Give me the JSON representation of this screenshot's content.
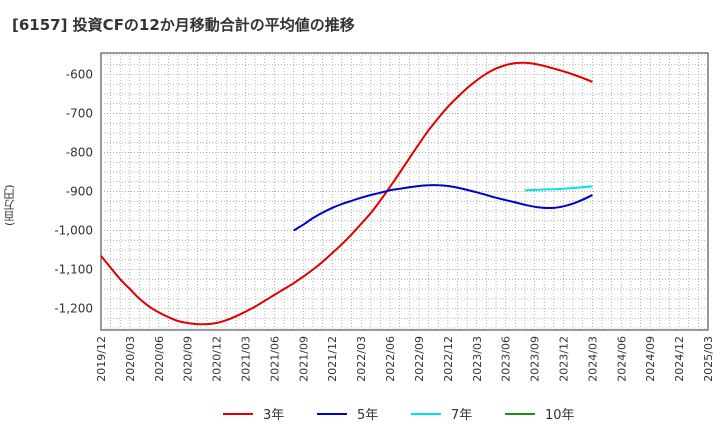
{
  "title": "[6157]  投資CFの12か月移動合計の平均値の推移",
  "chart_data": {
    "type": "line",
    "ylabel": "(百万円)",
    "ylim": [
      -1255,
      -545
    ],
    "yticks": [
      -600,
      -700,
      -800,
      -900,
      -1000,
      -1100,
      -1200
    ],
    "ytick_labels": [
      "-600",
      "-700",
      "-800",
      "-900",
      "-1,000",
      "-1,100",
      "-1,200"
    ],
    "xticks": [
      "2019/12",
      "2020/03",
      "2020/06",
      "2020/09",
      "2020/12",
      "2021/03",
      "2021/06",
      "2021/09",
      "2021/12",
      "2022/03",
      "2022/06",
      "2022/09",
      "2022/12",
      "2023/03",
      "2023/06",
      "2023/09",
      "2023/12",
      "2024/03",
      "2024/06",
      "2024/09",
      "2024/12",
      "2025/03"
    ],
    "grid": true,
    "legend_position": "bottom",
    "series": [
      {
        "name": "3年",
        "color": "#e00000",
        "points": [
          [
            "2019/12",
            -1065
          ],
          [
            "2020/01",
            -1095
          ],
          [
            "2020/02",
            -1125
          ],
          [
            "2020/03",
            -1150
          ],
          [
            "2020/04",
            -1175
          ],
          [
            "2020/05",
            -1195
          ],
          [
            "2020/06",
            -1210
          ],
          [
            "2020/07",
            -1222
          ],
          [
            "2020/08",
            -1232
          ],
          [
            "2020/09",
            -1237
          ],
          [
            "2020/10",
            -1240
          ],
          [
            "2020/11",
            -1240
          ],
          [
            "2020/12",
            -1237
          ],
          [
            "2021/01",
            -1230
          ],
          [
            "2021/02",
            -1220
          ],
          [
            "2021/03",
            -1208
          ],
          [
            "2021/04",
            -1195
          ],
          [
            "2021/05",
            -1180
          ],
          [
            "2021/06",
            -1165
          ],
          [
            "2021/07",
            -1150
          ],
          [
            "2021/08",
            -1135
          ],
          [
            "2021/09",
            -1118
          ],
          [
            "2021/10",
            -1100
          ],
          [
            "2021/11",
            -1080
          ],
          [
            "2021/12",
            -1058
          ],
          [
            "2022/01",
            -1035
          ],
          [
            "2022/02",
            -1010
          ],
          [
            "2022/03",
            -983
          ],
          [
            "2022/04",
            -955
          ],
          [
            "2022/05",
            -923
          ],
          [
            "2022/06",
            -888
          ],
          [
            "2022/07",
            -852
          ],
          [
            "2022/08",
            -815
          ],
          [
            "2022/09",
            -778
          ],
          [
            "2022/10",
            -743
          ],
          [
            "2022/11",
            -712
          ],
          [
            "2022/12",
            -683
          ],
          [
            "2023/01",
            -658
          ],
          [
            "2023/02",
            -635
          ],
          [
            "2023/03",
            -615
          ],
          [
            "2023/04",
            -598
          ],
          [
            "2023/05",
            -585
          ],
          [
            "2023/06",
            -576
          ],
          [
            "2023/07",
            -571
          ],
          [
            "2023/08",
            -570
          ],
          [
            "2023/09",
            -573
          ],
          [
            "2023/10",
            -578
          ],
          [
            "2023/11",
            -585
          ],
          [
            "2023/12",
            -592
          ],
          [
            "2024/01",
            -600
          ],
          [
            "2024/02",
            -609
          ],
          [
            "2024/03",
            -619
          ]
        ]
      },
      {
        "name": "5年",
        "color": "#0000cc",
        "points": [
          [
            "2021/08",
            -1000
          ],
          [
            "2021/09",
            -985
          ],
          [
            "2021/10",
            -968
          ],
          [
            "2021/11",
            -954
          ],
          [
            "2021/12",
            -942
          ],
          [
            "2022/01",
            -932
          ],
          [
            "2022/02",
            -924
          ],
          [
            "2022/03",
            -916
          ],
          [
            "2022/04",
            -909
          ],
          [
            "2022/05",
            -903
          ],
          [
            "2022/06",
            -897
          ],
          [
            "2022/07",
            -893
          ],
          [
            "2022/08",
            -889
          ],
          [
            "2022/09",
            -886
          ],
          [
            "2022/10",
            -884
          ],
          [
            "2022/11",
            -884
          ],
          [
            "2022/12",
            -886
          ],
          [
            "2023/01",
            -890
          ],
          [
            "2023/02",
            -896
          ],
          [
            "2023/03",
            -902
          ],
          [
            "2023/04",
            -909
          ],
          [
            "2023/05",
            -916
          ],
          [
            "2023/06",
            -922
          ],
          [
            "2023/07",
            -928
          ],
          [
            "2023/08",
            -934
          ],
          [
            "2023/09",
            -939
          ],
          [
            "2023/10",
            -942
          ],
          [
            "2023/11",
            -942
          ],
          [
            "2023/12",
            -938
          ],
          [
            "2024/01",
            -931
          ],
          [
            "2024/02",
            -921
          ],
          [
            "2024/03",
            -909
          ]
        ]
      },
      {
        "name": "7年",
        "color": "#00e5e5",
        "points": [
          [
            "2023/08",
            -897
          ],
          [
            "2023/09",
            -896
          ],
          [
            "2023/10",
            -895
          ],
          [
            "2023/11",
            -894
          ],
          [
            "2023/12",
            -893
          ],
          [
            "2024/01",
            -891
          ],
          [
            "2024/02",
            -889
          ],
          [
            "2024/03",
            -887
          ]
        ]
      },
      {
        "name": "10年",
        "color": "#228b22",
        "points": []
      }
    ]
  }
}
